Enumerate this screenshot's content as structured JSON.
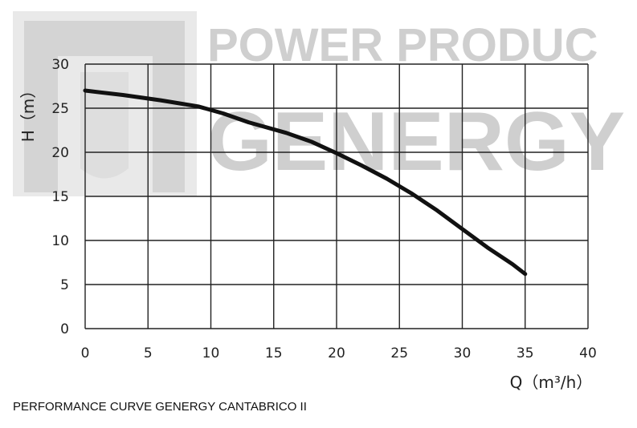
{
  "watermark": {
    "line1": "POWER PRODUC",
    "line2": "GENERGY",
    "color": "#cfcfcf",
    "logo_color": "#d4d4d4"
  },
  "caption": "PERFORMANCE CURVE GENERGY CANTABRICO II",
  "chart_data": {
    "type": "line",
    "title": "",
    "xlabel": "Q（m³/h）",
    "ylabel": "H（m）",
    "xlim": [
      0,
      40
    ],
    "ylim": [
      0,
      30
    ],
    "x_ticks": [
      0,
      5,
      10,
      15,
      20,
      25,
      30,
      35,
      40
    ],
    "y_ticks": [
      0,
      5,
      10,
      15,
      20,
      25,
      30
    ],
    "grid": true,
    "legend": "none",
    "series": [
      {
        "color": "#111111",
        "x": [
          0,
          3,
          6,
          9,
          11,
          13,
          16,
          18,
          20,
          22,
          24,
          26,
          28,
          30,
          32,
          34,
          35
        ],
        "y": [
          27,
          26.5,
          25.9,
          25.2,
          24.4,
          23.4,
          22.2,
          21.2,
          19.9,
          18.5,
          17.0,
          15.3,
          13.4,
          11.3,
          9.2,
          7.3,
          6.2
        ]
      }
    ]
  }
}
